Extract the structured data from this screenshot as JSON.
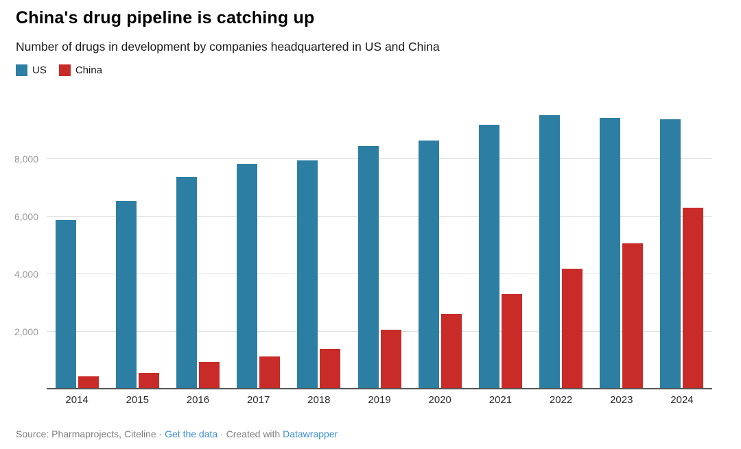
{
  "header": {
    "title": "China's drug pipeline is catching up",
    "subtitle": "Number of drugs in development by companies headquartered in US and China"
  },
  "colors": {
    "us_bar": "#2d7ea3",
    "china_bar": "#c92b28",
    "gridline": "#dedede",
    "axis_line": "#555555",
    "y_label_text": "#979797",
    "link_blue": "#3a8ed2"
  },
  "chart_data": {
    "type": "bar",
    "title": "China's drug pipeline is catching up",
    "subtitle": "Number of drugs in development by companies headquartered in US and China",
    "xlabel": "",
    "ylabel": "",
    "categories": [
      "2014",
      "2015",
      "2016",
      "2017",
      "2018",
      "2019",
      "2020",
      "2021",
      "2022",
      "2023",
      "2024"
    ],
    "series": [
      {
        "name": "US",
        "color": "#2d7ea3",
        "values": [
          5890,
          6550,
          7380,
          7840,
          7950,
          8460,
          8640,
          9200,
          9530,
          9420,
          9370
        ]
      },
      {
        "name": "China",
        "color": "#c92b28",
        "values": [
          450,
          570,
          950,
          1150,
          1400,
          2080,
          2620,
          3300,
          4200,
          5060,
          6300
        ]
      }
    ],
    "ylim": [
      0,
      10000
    ],
    "yticks": [
      2000,
      4000,
      6000,
      8000
    ],
    "ytick_labels": [
      "2,000",
      "4,000",
      "6,000",
      "8,000"
    ],
    "grid": true,
    "legend_position": "top-left"
  },
  "footer": {
    "source": "Source: Pharmaprojects, Citeline",
    "dot": "·",
    "get_data_link": "Get the data",
    "created_with": "Created with",
    "datawrapper_link": "Datawrapper"
  }
}
